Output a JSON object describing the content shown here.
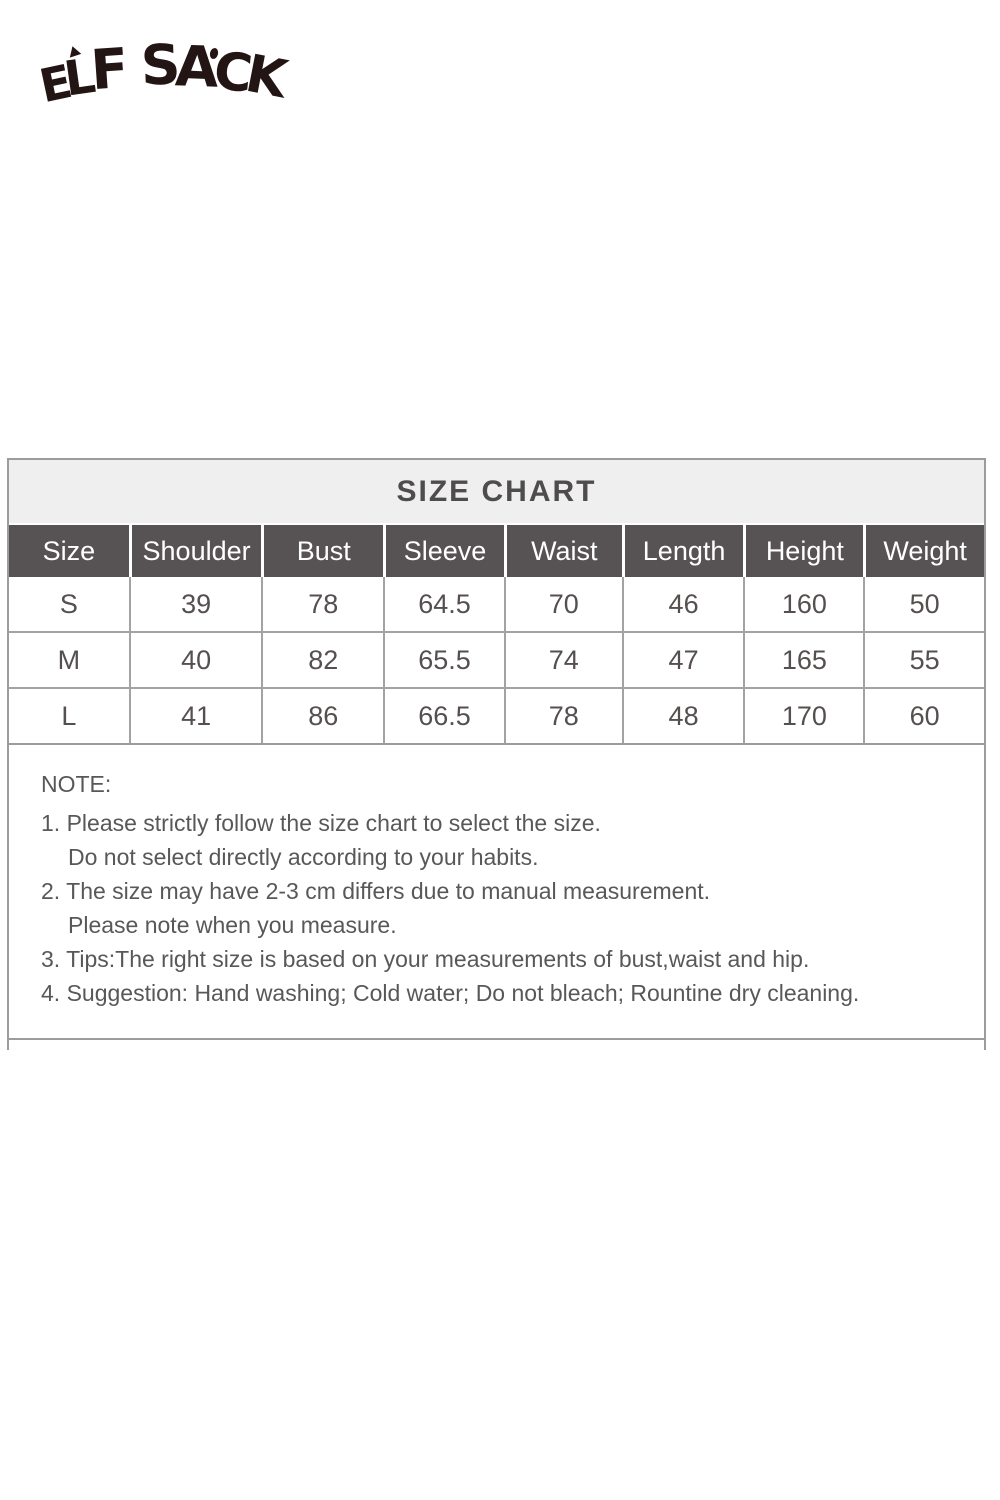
{
  "logo": {
    "text": "ELF SACK",
    "letters": [
      "E",
      "L",
      "F",
      "S",
      "A",
      "C",
      "K"
    ]
  },
  "size_chart": {
    "title": "SIZE CHART",
    "columns": [
      "Size",
      "Shoulder",
      "Bust",
      "Sleeve",
      "Waist",
      "Length",
      "Height",
      "Weight"
    ],
    "rows": [
      [
        "S",
        "39",
        "78",
        "64.5",
        "70",
        "46",
        "160",
        "50"
      ],
      [
        "M",
        "40",
        "82",
        "65.5",
        "74",
        "47",
        "165",
        "55"
      ],
      [
        "L",
        "41",
        "86",
        "66.5",
        "78",
        "48",
        "170",
        "60"
      ]
    ]
  },
  "notes": {
    "heading": "NOTE:",
    "lines": [
      {
        "text": "1. Please strictly follow the size chart to select the size.",
        "indent": false
      },
      {
        "text": "Do not select directly according to your habits.",
        "indent": true
      },
      {
        "text": "2. The size may have 2-3 cm differs due to manual measurement.",
        "indent": false
      },
      {
        "text": "Please note when you measure.",
        "indent": true
      },
      {
        "text": "3. Tips:The right size is based on your measurements of bust,waist and hip.",
        "indent": false
      },
      {
        "text": "4. Suggestion: Hand washing; Cold water; Do not bleach; Rountine dry cleaning.",
        "indent": false
      }
    ]
  },
  "colors": {
    "header_bg": "#575254",
    "header_text": "#ffffff",
    "title_bg": "#efefef",
    "border": "#9c9c9c",
    "cell_text": "#55504f",
    "note_text": "#595757",
    "logo": "#221514"
  },
  "chart_data": {
    "type": "table",
    "title": "SIZE CHART",
    "columns": [
      "Size",
      "Shoulder",
      "Bust",
      "Sleeve",
      "Waist",
      "Length",
      "Height",
      "Weight"
    ],
    "rows": [
      [
        "S",
        39,
        78,
        64.5,
        70,
        46,
        160,
        50
      ],
      [
        "M",
        40,
        82,
        65.5,
        74,
        47,
        165,
        55
      ],
      [
        "L",
        41,
        86,
        66.5,
        78,
        48,
        170,
        60
      ]
    ]
  }
}
